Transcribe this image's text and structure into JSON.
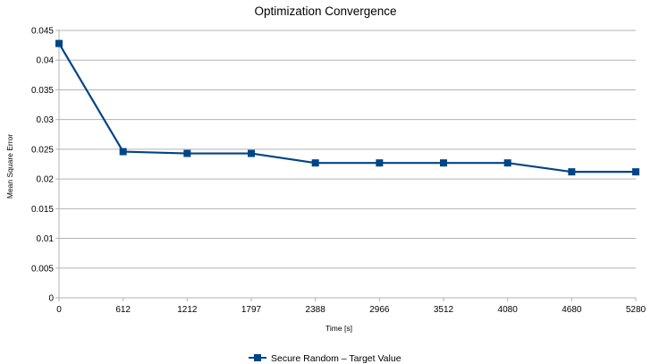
{
  "chart_data": {
    "type": "line",
    "title": "Optimization Convergence",
    "xlabel": "Time [s]",
    "ylabel": "Mean Square Error",
    "categories": [
      "0",
      "612",
      "1212",
      "1797",
      "2388",
      "2966",
      "3512",
      "4080",
      "4680",
      "5280"
    ],
    "series": [
      {
        "name": "Secure Random – Target Value",
        "values": [
          0.0428,
          0.0246,
          0.0243,
          0.0243,
          0.0227,
          0.0227,
          0.0227,
          0.0227,
          0.0212,
          0.0212
        ]
      }
    ],
    "yticks": [
      "0",
      "0.005",
      "0.01",
      "0.015",
      "0.02",
      "0.025",
      "0.03",
      "0.035",
      "0.04",
      "0.045"
    ],
    "ylim": [
      0,
      0.045
    ],
    "grid": true,
    "legend_position": "bottom",
    "colors": {
      "series": "#004586",
      "grid": "#b3b3b3"
    }
  }
}
